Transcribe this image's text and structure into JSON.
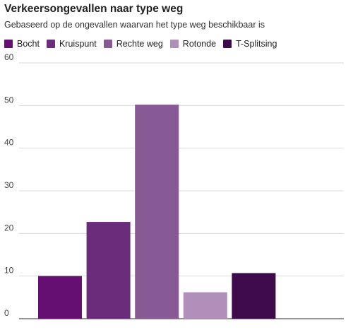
{
  "chart_data": {
    "type": "bar",
    "title": "Verkeersongevallen naar type weg",
    "subtitle": "Gebaseerd op de ongevallen waarvan het type weg beschikbaar is",
    "categories": [
      "Bocht",
      "Kruispunt",
      "Rechte weg",
      "Rotonde",
      "T-Splitsing"
    ],
    "values": [
      10,
      22.7,
      50.2,
      6.2,
      10.7
    ],
    "colors": [
      "#650f72",
      "#6b2c7b",
      "#875a96",
      "#b090bb",
      "#3e0a4c"
    ],
    "ylim": [
      0,
      60
    ],
    "yticks": [
      0,
      10,
      20,
      30,
      40,
      50,
      60
    ],
    "grid": true,
    "legend": "top"
  }
}
